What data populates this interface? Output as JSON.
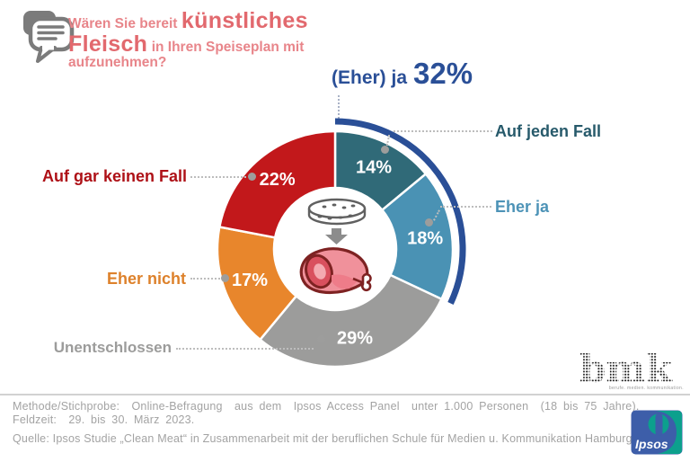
{
  "title": {
    "pre": "Wären Sie bereit",
    "big1": "künstliches",
    "big2": "Fleisch",
    "mid": "in Ihren Speiseplan mit",
    "tail": "aufzunehmen?"
  },
  "chart_data": {
    "type": "pie",
    "donut": true,
    "title": "Wären Sie bereit künstliches Fleisch in Ihren Speiseplan mit aufzunehmen?",
    "start_angle_deg": 0,
    "direction": "clockwise",
    "segments": [
      {
        "label": "Auf jeden Fall",
        "value": 14,
        "color": "#306A78",
        "label_color": "#275A6B"
      },
      {
        "label": "Eher ja",
        "value": 18,
        "color": "#4A92B4",
        "label_color": "#4D93B7"
      },
      {
        "label": "Unentschlossen",
        "value": 29,
        "color": "#9C9C9B",
        "label_color": "#9C9C9B"
      },
      {
        "label": "Eher nicht",
        "value": 17,
        "color": "#E8862C",
        "label_color": "#DD812B"
      },
      {
        "label": "Auf gar keinen Fall",
        "value": 22,
        "color": "#C2181B",
        "label_color": "#AE1117"
      }
    ],
    "summary": {
      "label": "(Eher) ja",
      "value_pct": 32,
      "display": "32%",
      "covers": [
        "Auf jeden Fall",
        "Eher ja"
      ],
      "color": "#2A4F97"
    },
    "center_icons": [
      "petri-dish",
      "down-arrow",
      "meat"
    ]
  },
  "footer": {
    "line1": "Methode/Stichprobe:  Online-Befragung  aus dem  Ipsos Access Panel  unter 1.000 Personen  (18 bis 75 Jahre).",
    "line2": "Feldzeit:  29. bis 30. März 2023.",
    "source": "Quelle: Ipsos Studie „Clean Meat“ in Zusammenarbeit mit der beruflichen Schule für Medien u. Kommunikation Hamburg."
  },
  "logos": {
    "bmk": {
      "text": "bmk",
      "tagline": "berufe. medien. kommunikation."
    },
    "ipsos": {
      "text": "Ipsos"
    }
  }
}
